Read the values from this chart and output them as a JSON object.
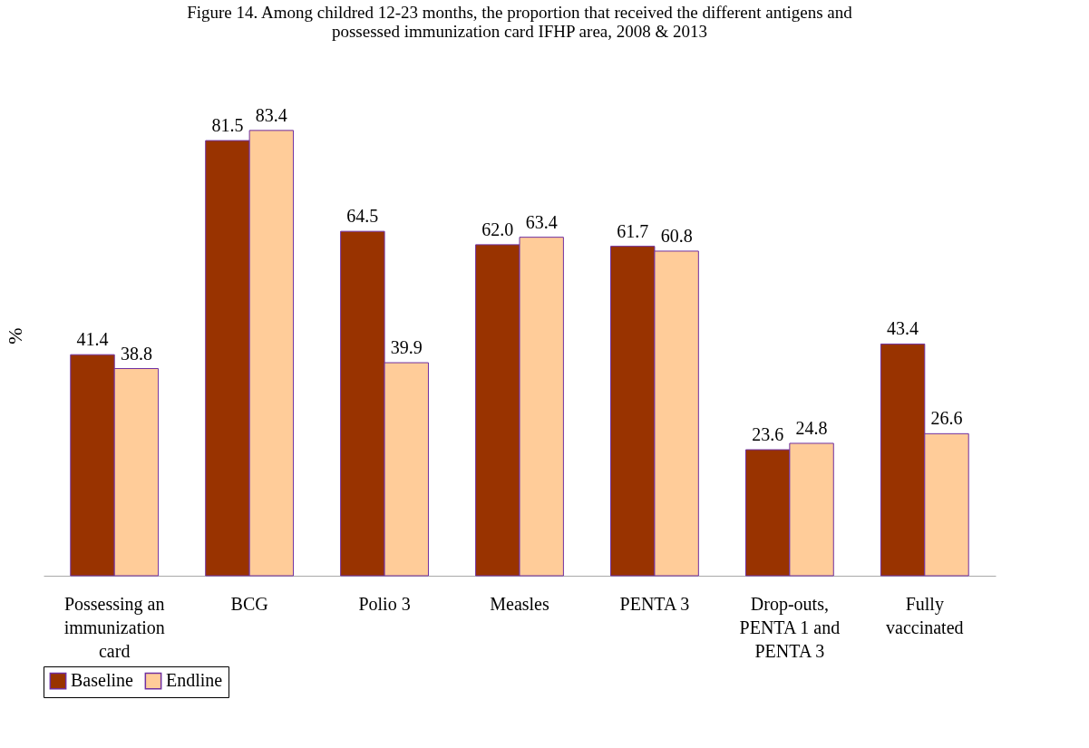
{
  "chart_data": {
    "type": "bar",
    "title": [
      "Figure 14. Among childred 12-23 months, the proportion that received the different antigens and",
      "possessed immunization card IFHP area, 2008 & 2013"
    ],
    "ylabel": "%",
    "categories": [
      "Possessing an immunization card",
      "BCG",
      "Polio 3",
      "Measles",
      "PENTA 3",
      "Drop-outs, PENTA 1 and PENTA 3",
      "Fully vaccinated"
    ],
    "series": [
      {
        "name": "Baseline",
        "color": "#993300",
        "values": [
          41.4,
          81.5,
          64.5,
          62.0,
          61.7,
          23.6,
          43.4
        ],
        "value_labels": [
          "41.4",
          "81.5",
          "64.5",
          "62.0",
          "61.7",
          "23.6",
          "43.4"
        ]
      },
      {
        "name": "Endline",
        "color": "#ffcc99",
        "values": [
          38.8,
          83.4,
          39.9,
          63.4,
          60.8,
          24.8,
          26.6
        ],
        "value_labels": [
          "38.8",
          "83.4",
          "39.9",
          "63.4",
          "60.8",
          "24.8",
          "26.6"
        ]
      }
    ],
    "legend": "bottom",
    "grid": false
  }
}
